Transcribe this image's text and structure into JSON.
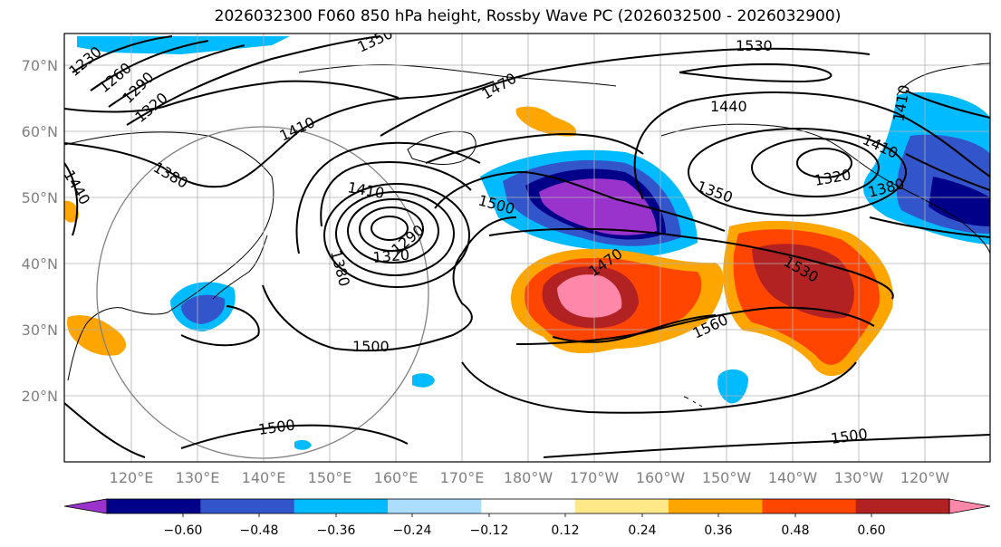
{
  "title": "2026032300 F060 850 hPa height, Rossby Wave PC (2026032500 - 2026032900)",
  "map": {
    "lat_labels": [
      "70°N",
      "60°N",
      "50°N",
      "40°N",
      "30°N",
      "20°N"
    ],
    "lon_labels": [
      "120°E",
      "130°E",
      "140°E",
      "150°E",
      "160°E",
      "170°E",
      "180°W",
      "170°W",
      "160°W",
      "150°W",
      "140°W",
      "130°W",
      "120°W"
    ],
    "contour_labels": [
      "1230",
      "1260",
      "1290",
      "1320",
      "1350",
      "1380",
      "1410",
      "1470",
      "1530",
      "1440",
      "1410",
      "1350",
      "1320",
      "1380",
      "1410",
      "1500",
      "1380",
      "1290",
      "1320",
      "1470",
      "1530",
      "1560",
      "1500",
      "1500",
      "1500",
      "1440",
      "1410"
    ],
    "colors": {
      "land_outline": "#000000",
      "contour": "#000000",
      "grid": "#b0b0b0",
      "circle": "#808080"
    }
  },
  "colorbar": {
    "ticks": [
      "−0.60",
      "−0.48",
      "−0.36",
      "−0.24",
      "−0.12",
      "0.12",
      "0.24",
      "0.36",
      "0.48",
      "0.60"
    ],
    "colors": [
      "#9933cc",
      "#000088",
      "#3355cc",
      "#00bbff",
      "#aaddff",
      "#ffffff",
      "#ffe888",
      "#ffa500",
      "#ff4500",
      "#b22222",
      "#ff88aa"
    ]
  }
}
